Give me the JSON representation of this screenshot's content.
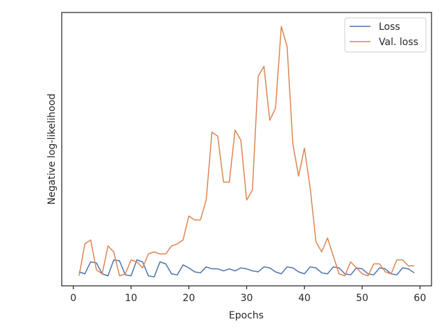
{
  "chart_data": {
    "type": "line",
    "title": "",
    "xlabel": "Epochs",
    "ylabel": "Negative log-likelihood",
    "xlim": [
      -2,
      62
    ],
    "ylim": [
      0.1,
      13.8
    ],
    "xticks": [
      0,
      10,
      20,
      30,
      40,
      50,
      60
    ],
    "yticks": [],
    "grid": false,
    "legend": "top-right",
    "colors": {
      "axis": "#262626",
      "background": "#ffffff"
    },
    "series": [
      {
        "name": "Loss",
        "color": "#4c72b0",
        "x": [
          1,
          2,
          3,
          4,
          5,
          6,
          7,
          8,
          9,
          10,
          11,
          12,
          13,
          14,
          15,
          16,
          17,
          18,
          19,
          20,
          21,
          22,
          23,
          24,
          25,
          26,
          27,
          28,
          29,
          30,
          31,
          32,
          33,
          34,
          35,
          36,
          37,
          38,
          39,
          40,
          41,
          42,
          43,
          44,
          45,
          46,
          47,
          48,
          49,
          50,
          51,
          52,
          53,
          54,
          55,
          56,
          57,
          58,
          59
        ],
        "values": [
          0.8,
          0.7,
          1.3,
          1.25,
          0.7,
          0.6,
          1.4,
          1.35,
          0.65,
          0.6,
          1.4,
          1.3,
          0.6,
          0.55,
          1.3,
          1.2,
          0.7,
          0.65,
          1.15,
          1.0,
          0.8,
          0.75,
          1.05,
          0.95,
          0.95,
          0.85,
          0.95,
          0.85,
          1.0,
          0.95,
          0.85,
          0.8,
          1.05,
          1.0,
          0.8,
          0.7,
          1.05,
          1.0,
          0.8,
          0.7,
          1.05,
          1.0,
          0.75,
          0.7,
          1.05,
          1.0,
          0.7,
          0.65,
          1.0,
          0.95,
          0.7,
          0.65,
          1.0,
          0.95,
          0.7,
          0.65,
          1.0,
          0.95,
          0.75
        ]
      },
      {
        "name": "Val. loss",
        "color": "#dd8452",
        "x": [
          1,
          2,
          3,
          4,
          5,
          6,
          7,
          8,
          9,
          10,
          11,
          12,
          13,
          14,
          15,
          16,
          17,
          18,
          19,
          20,
          21,
          22,
          23,
          24,
          25,
          26,
          27,
          28,
          29,
          30,
          31,
          32,
          33,
          34,
          35,
          36,
          37,
          38,
          39,
          40,
          41,
          42,
          43,
          44,
          45,
          46,
          47,
          48,
          49,
          50,
          51,
          52,
          53,
          54,
          55,
          56,
          57,
          58,
          59
        ],
        "values": [
          0.6,
          2.2,
          2.4,
          0.9,
          0.7,
          2.1,
          1.8,
          0.6,
          0.7,
          1.4,
          1.3,
          1.0,
          1.7,
          1.8,
          1.7,
          1.7,
          2.1,
          2.2,
          2.4,
          3.6,
          3.4,
          3.4,
          4.4,
          7.8,
          7.6,
          5.3,
          5.3,
          7.9,
          7.4,
          4.4,
          4.9,
          10.6,
          11.1,
          8.4,
          9.0,
          13.1,
          12.1,
          7.2,
          5.6,
          7.0,
          5.0,
          2.3,
          1.8,
          2.5,
          1.6,
          0.7,
          0.6,
          1.3,
          1.0,
          0.7,
          0.6,
          1.2,
          1.2,
          0.8,
          0.7,
          1.4,
          1.4,
          1.1,
          1.1
        ]
      }
    ]
  }
}
